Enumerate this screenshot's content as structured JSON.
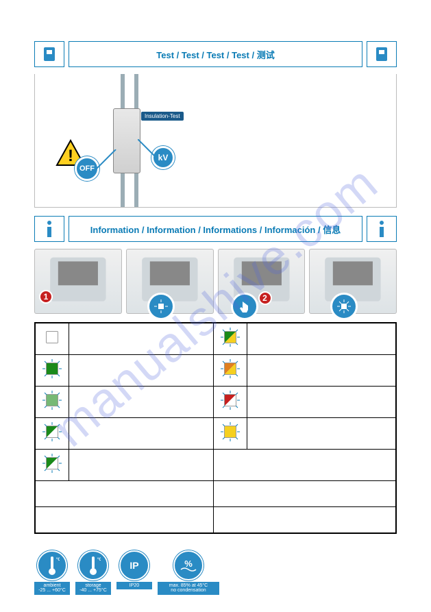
{
  "sections": {
    "test": {
      "title": "Test / Test / Test / Test / 测试"
    },
    "info": {
      "title": "Information / Information / Informations / Información / 信息"
    }
  },
  "diagram": {
    "insulation_label": "Insulation-Test",
    "off_label": "OFF",
    "kv_label": "kV"
  },
  "thumbs": {
    "badge1": "1",
    "badge2": "2"
  },
  "led_table": {
    "rows_left": [
      {
        "fill": "#ffffff",
        "glow": false
      },
      {
        "fill": "#1a8a1a",
        "glow": true
      },
      {
        "fill": "#1a8a1a",
        "glow": true,
        "half": true
      },
      {
        "fill": "#1a8a1a",
        "glow": true,
        "diag": true
      },
      {
        "fill": "#1a8a1a",
        "glow": true,
        "diag": true
      }
    ],
    "rows_right": [
      {
        "split": [
          "#1a8a1a",
          "#f5d020"
        ],
        "glow": true
      },
      {
        "split": [
          "#e08020",
          "#f5d020"
        ],
        "glow": true
      },
      {
        "split": [
          "#c62020",
          "#ffffff"
        ],
        "glow": true
      },
      {
        "fill": "#f5d020",
        "glow": true
      }
    ]
  },
  "specs": {
    "ambient": {
      "label": "ambient",
      "range": "-25 ... +60°C"
    },
    "storage": {
      "label": "storage",
      "range": "-40 ... +75°C"
    },
    "ip": {
      "main": "IP",
      "sub": "IP20"
    },
    "humidity": {
      "line1": "max. 85% at 45°C",
      "line2": "no condensation"
    }
  },
  "colors": {
    "brand": "#0a7bb5",
    "brand_fill": "#2a8bc4",
    "red": "#c62020"
  }
}
